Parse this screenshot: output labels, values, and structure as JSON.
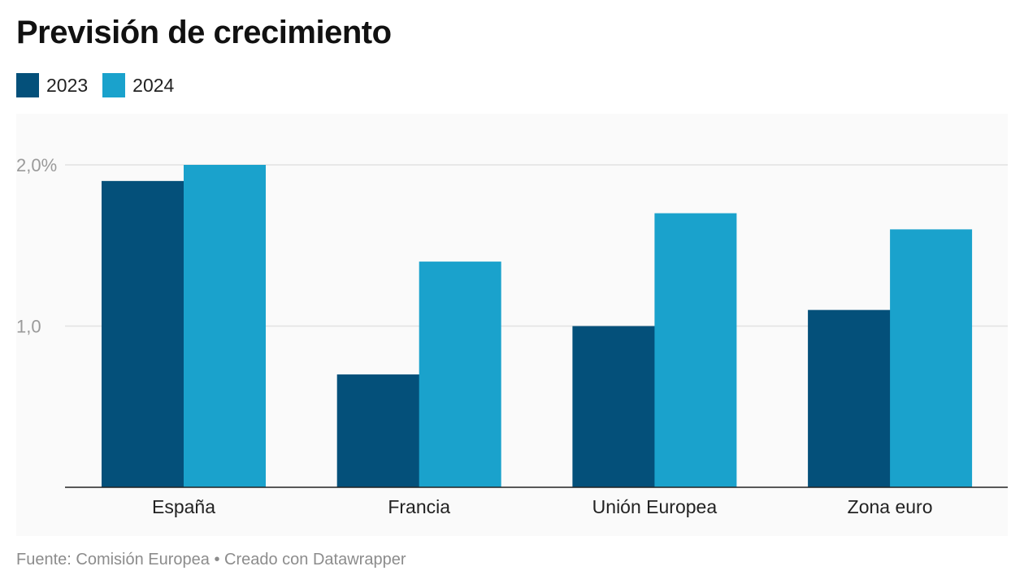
{
  "chart_data": {
    "type": "bar",
    "title": "Previsión de crecimiento",
    "categories": [
      "España",
      "Francia",
      "Unión Europea",
      "Zona euro"
    ],
    "series": [
      {
        "name": "2023",
        "values": [
          1.9,
          0.7,
          1.0,
          1.1
        ],
        "color": "#04507a"
      },
      {
        "name": "2024",
        "values": [
          2.0,
          1.4,
          1.7,
          1.6
        ],
        "color": "#1aa2cc"
      }
    ],
    "yticks": [
      {
        "value": 2.0,
        "label": "2,0%"
      },
      {
        "value": 1.0,
        "label": "1,0"
      }
    ],
    "ylim": [
      0,
      2.0
    ],
    "grid": true,
    "legend_position": "top-left"
  },
  "footer": {
    "text": "Fuente: Comisión Europea • Creado con Datawrapper"
  }
}
